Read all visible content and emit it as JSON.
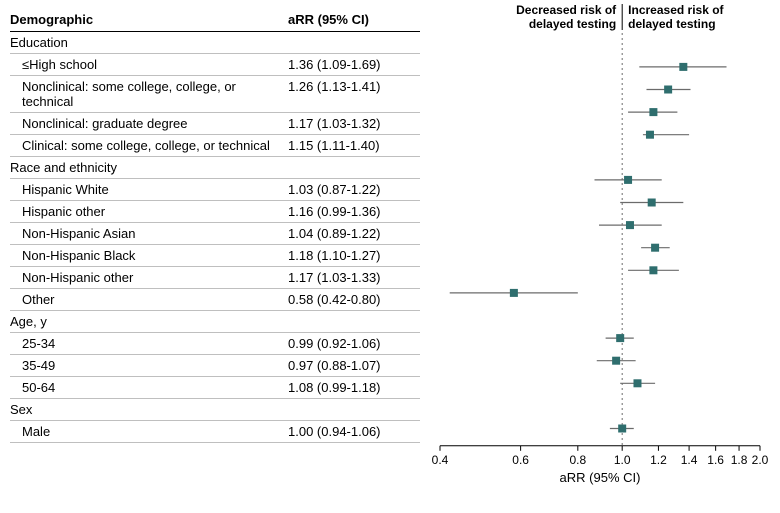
{
  "headers": {
    "demographic": "Demographic",
    "arr": "aRR (95% CI)"
  },
  "risk_labels": {
    "left_line1": "Decreased risk of",
    "left_line2": "delayed testing",
    "right_line1": "Increased risk of",
    "right_line2": "delayed testing"
  },
  "axis": {
    "title": "aRR (95% CI)",
    "ticks": [
      0.4,
      0.6,
      0.8,
      1.0,
      1.2,
      1.4,
      1.6,
      1.8,
      2.0
    ],
    "xmin": 0.4,
    "xmax": 2.0,
    "ref": 1.0
  },
  "colors": {
    "marker_fill": "#2f6e6e",
    "marker_stroke": "#2f6e6e",
    "ci_line": "#6b6b6b",
    "ref_line": "#6b6b6b",
    "axis_line": "#000000",
    "row_border": "#bfbfbf",
    "header_border": "#000000",
    "background": "#ffffff",
    "text": "#000000"
  },
  "style": {
    "marker_size": 7,
    "ci_line_width": 1.2,
    "font_size_row": 13,
    "font_size_tick": 12,
    "log_scale": true
  },
  "rows": [
    {
      "type": "group",
      "label": "Education"
    },
    {
      "type": "data",
      "label": "≤High school",
      "arr_text": "1.36 (1.09-1.69)",
      "est": 1.36,
      "lo": 1.09,
      "hi": 1.69
    },
    {
      "type": "data",
      "label": "Nonclinical: some college, college, or technical",
      "arr_text": "1.26 (1.13-1.41)",
      "est": 1.26,
      "lo": 1.13,
      "hi": 1.41
    },
    {
      "type": "data",
      "label": "Nonclinical: graduate degree",
      "arr_text": "1.17 (1.03-1.32)",
      "est": 1.17,
      "lo": 1.03,
      "hi": 1.32
    },
    {
      "type": "data",
      "label": "Clinical: some college, college, or technical",
      "arr_text": "1.15 (1.11-1.40)",
      "est": 1.15,
      "lo": 1.11,
      "hi": 1.4
    },
    {
      "type": "group",
      "label": "Race and ethnicity"
    },
    {
      "type": "data",
      "label": "Hispanic White",
      "arr_text": "1.03 (0.87-1.22)",
      "est": 1.03,
      "lo": 0.87,
      "hi": 1.22
    },
    {
      "type": "data",
      "label": "Hispanic other",
      "arr_text": "1.16 (0.99-1.36)",
      "est": 1.16,
      "lo": 0.99,
      "hi": 1.36
    },
    {
      "type": "data",
      "label": "Non-Hispanic Asian",
      "arr_text": "1.04 (0.89-1.22)",
      "est": 1.04,
      "lo": 0.89,
      "hi": 1.22
    },
    {
      "type": "data",
      "label": "Non-Hispanic Black",
      "arr_text": "1.18 (1.10-1.27)",
      "est": 1.18,
      "lo": 1.1,
      "hi": 1.27
    },
    {
      "type": "data",
      "label": "Non-Hispanic other",
      "arr_text": "1.17 (1.03-1.33)",
      "est": 1.17,
      "lo": 1.03,
      "hi": 1.33
    },
    {
      "type": "data",
      "label": "Other",
      "arr_text": "0.58 (0.42-0.80)",
      "est": 0.58,
      "lo": 0.42,
      "hi": 0.8
    },
    {
      "type": "group",
      "label": "Age, y"
    },
    {
      "type": "data",
      "label": "25-34",
      "arr_text": "0.99 (0.92-1.06)",
      "est": 0.99,
      "lo": 0.92,
      "hi": 1.06
    },
    {
      "type": "data",
      "label": "35-49",
      "arr_text": "0.97 (0.88-1.07)",
      "est": 0.97,
      "lo": 0.88,
      "hi": 1.07
    },
    {
      "type": "data",
      "label": "50-64",
      "arr_text": "1.08 (0.99-1.18)",
      "est": 1.08,
      "lo": 0.99,
      "hi": 1.18
    },
    {
      "type": "group",
      "label": "Sex"
    },
    {
      "type": "data",
      "label": "Male",
      "arr_text": "1.00 (0.94-1.06)",
      "est": 1.0,
      "lo": 0.94,
      "hi": 1.06
    }
  ]
}
